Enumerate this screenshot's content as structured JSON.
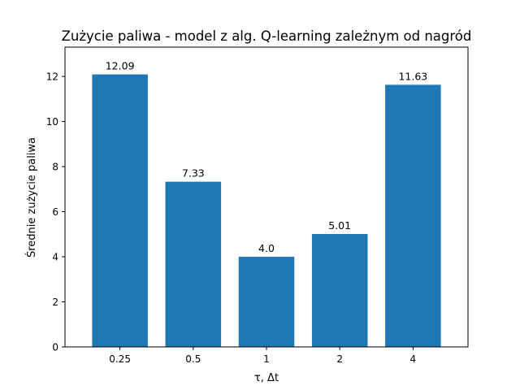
{
  "chart_data": {
    "type": "bar",
    "title": "Zużycie paliwa - model z alg. Q-learning zależnym od nagród",
    "xlabel": "τ, Δt",
    "ylabel": "Średnie zużycie paliwa",
    "categories": [
      "0.25",
      "0.5",
      "1",
      "2",
      "4"
    ],
    "values": [
      12.09,
      7.33,
      4.0,
      5.01,
      11.63
    ],
    "value_labels": [
      "12.09",
      "7.33",
      "4.0",
      "5.01",
      "11.63"
    ],
    "ylim": [
      0,
      13.3
    ],
    "yticks": [
      0,
      2,
      4,
      6,
      8,
      10,
      12
    ],
    "grid": false,
    "bar_color": "#1f77b4"
  }
}
